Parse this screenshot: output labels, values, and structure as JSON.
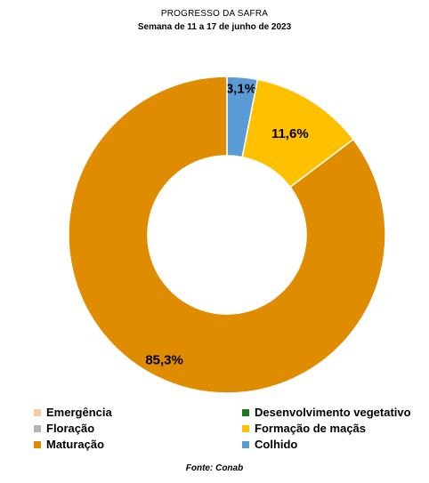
{
  "chart_data": {
    "type": "pie",
    "title": "PROGRESSO DA SAFRA",
    "subtitle": "Semana de 11 a 17 de junho de 2023",
    "donut": true,
    "start_category": "Colhido",
    "categories": [
      "Emergência",
      "Desenvolvimento vegetativo",
      "Floração",
      "Formação de maçãs",
      "Maturação",
      "Colhido"
    ],
    "values": [
      0,
      0,
      0,
      11.6,
      85.3,
      3.1
    ],
    "colors": [
      "#f4c9a6",
      "#1f7a1f",
      "#b3b3b3",
      "#ffc000",
      "#e08c00",
      "#5b9bd5"
    ],
    "data_labels": [
      "",
      "",
      "",
      "11,6%",
      "85,3%",
      "3,1%"
    ],
    "legend_position": "bottom"
  },
  "footer": {
    "source": "Fonte: Conab"
  }
}
